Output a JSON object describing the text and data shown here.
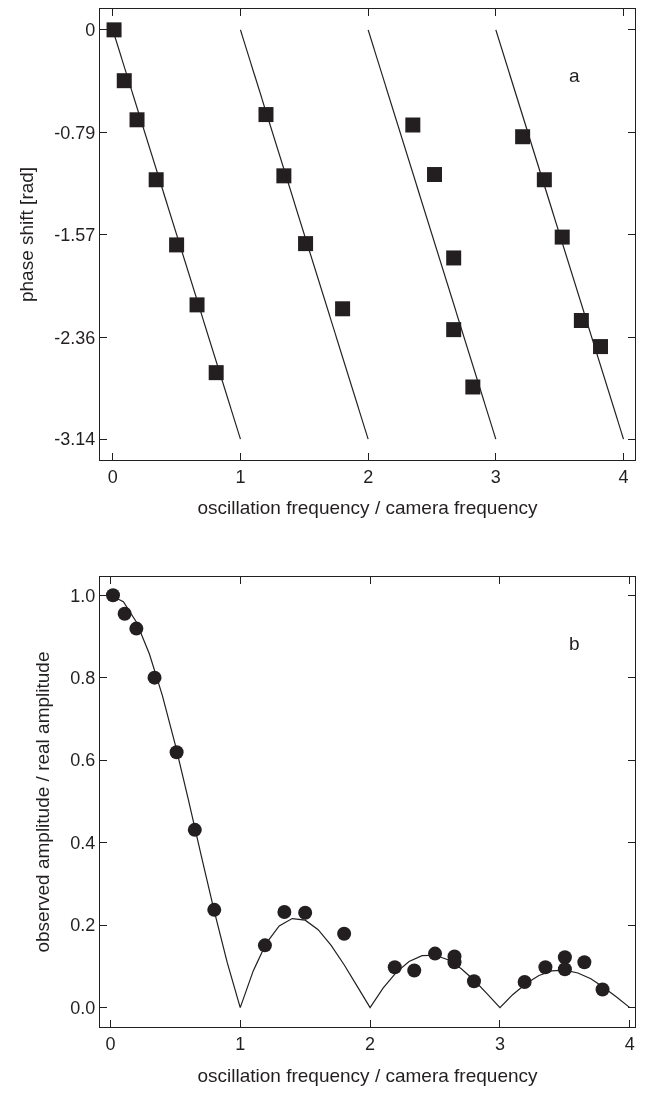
{
  "chart_data": [
    {
      "type": "scatter",
      "xlabel": "oscillation frequency / camera frequency",
      "ylabel": "phase shift [rad]",
      "annotations": [
        "a"
      ],
      "xlim": [
        -0.1,
        4.09
      ],
      "ylim": [
        -3.3,
        0.16
      ],
      "xticks": [
        0,
        1,
        2,
        3,
        4
      ],
      "yticks": [
        0,
        -0.79,
        -1.57,
        -2.36,
        -3.14
      ],
      "grid": false,
      "legend": false,
      "series": [
        {
          "marker": "square",
          "color": "#231f20",
          "x": [
            0.01,
            0.09,
            0.19,
            0.34,
            0.5,
            0.66,
            0.81,
            1.2,
            1.34,
            1.51,
            1.8,
            2.35,
            2.52,
            2.67,
            2.67,
            2.82,
            3.21,
            3.38,
            3.52,
            3.67,
            3.82
          ],
          "values": [
            0,
            -0.39,
            -0.69,
            -1.15,
            -1.65,
            -2.11,
            -2.63,
            -0.65,
            -1.12,
            -1.64,
            -2.14,
            -0.73,
            -1.11,
            -1.75,
            -2.3,
            -2.74,
            -0.82,
            -1.15,
            -1.59,
            -2.23,
            -2.43
          ]
        },
        {
          "type": "line",
          "marker": "none",
          "line_style": "solid",
          "color": "#231f20",
          "x": [
            0,
            1
          ],
          "values": [
            0,
            -3.14
          ]
        },
        {
          "type": "line",
          "marker": "none",
          "line_style": "solid",
          "color": "#231f20",
          "x": [
            1,
            2
          ],
          "values": [
            0,
            -3.14
          ]
        },
        {
          "type": "line",
          "marker": "none",
          "line_style": "solid",
          "color": "#231f20",
          "x": [
            2,
            3
          ],
          "values": [
            0,
            -3.14
          ]
        },
        {
          "type": "line",
          "marker": "none",
          "line_style": "solid",
          "color": "#231f20",
          "x": [
            3,
            4
          ],
          "values": [
            0,
            -3.14
          ]
        }
      ]
    },
    {
      "type": "scatter",
      "xlabel": "oscillation frequency / camera frequency",
      "ylabel": "observed amplitude / real amplitude",
      "annotations": [
        "b"
      ],
      "xlim": [
        -0.08,
        4.04
      ],
      "ylim": [
        -0.047,
        1.044
      ],
      "xticks": [
        0,
        1,
        2,
        3,
        4
      ],
      "yticks": [
        {
          "value": 0,
          "label": "0.0"
        },
        0.2,
        0.4,
        0.6,
        0.8,
        {
          "value": 1,
          "label": "1.0"
        }
      ],
      "grid": false,
      "legend": false,
      "series": [
        {
          "marker": "circle",
          "color": "#231f20",
          "x": [
            0.02,
            0.11,
            0.2,
            0.34,
            0.51,
            0.65,
            0.8,
            1.19,
            1.34,
            1.5,
            1.8,
            2.19,
            2.34,
            2.5,
            2.65,
            2.65,
            2.8,
            3.19,
            3.35,
            3.5,
            3.5,
            3.65,
            3.79
          ],
          "values": [
            1.0,
            0.955,
            0.919,
            0.8,
            0.619,
            0.431,
            0.237,
            0.151,
            0.232,
            0.23,
            0.179,
            0.098,
            0.09,
            0.131,
            0.124,
            0.11,
            0.064,
            0.062,
            0.098,
            0.122,
            0.093,
            0.11,
            0.044
          ]
        },
        {
          "type": "line",
          "marker": "none",
          "line_style": "solid",
          "color": "#231f20",
          "x": [
            0,
            0.1,
            0.2,
            0.3,
            0.4,
            0.5,
            0.6,
            0.7,
            0.8,
            0.9,
            1.0,
            1.1,
            1.2,
            1.3,
            1.4,
            1.5,
            1.6,
            1.7,
            1.8,
            1.9,
            2.0,
            2.1,
            2.2,
            2.3,
            2.4,
            2.5,
            2.6,
            2.7,
            2.8,
            2.9,
            3.0,
            3.1,
            3.2,
            3.3,
            3.4,
            3.5,
            3.6,
            3.7,
            3.8,
            3.9,
            4.0
          ],
          "values": [
            1,
            0.984,
            0.935,
            0.858,
            0.757,
            0.637,
            0.505,
            0.368,
            0.234,
            0.109,
            0,
            0.089,
            0.156,
            0.198,
            0.216,
            0.212,
            0.189,
            0.151,
            0.104,
            0.052,
            0,
            0.047,
            0.085,
            0.112,
            0.126,
            0.127,
            0.116,
            0.095,
            0.067,
            0.034,
            0,
            0.032,
            0.058,
            0.078,
            0.089,
            0.091,
            0.084,
            0.07,
            0.049,
            0.025,
            0
          ]
        }
      ]
    }
  ]
}
